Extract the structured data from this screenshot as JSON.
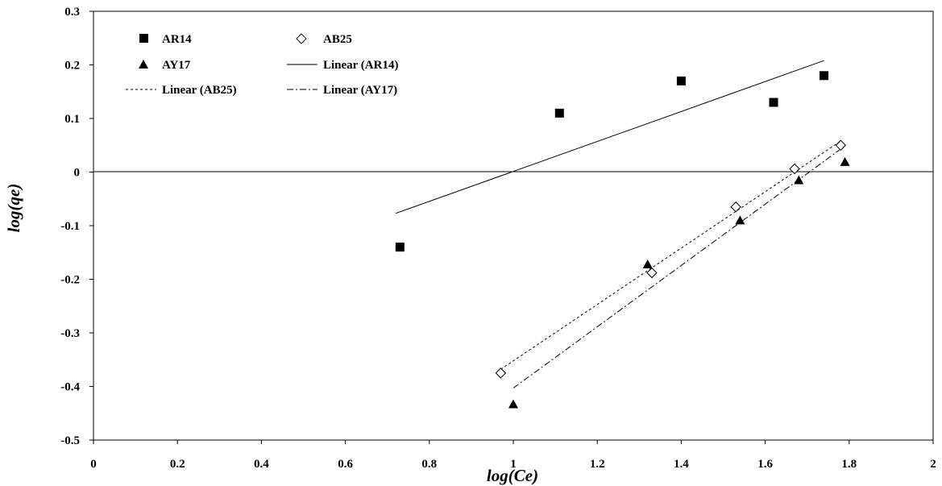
{
  "chart_data": {
    "type": "scatter",
    "title": "",
    "xlabel": "log(Ce)",
    "ylabel": "log(qe)",
    "xlim": [
      0,
      2
    ],
    "ylim": [
      -0.5,
      0.3
    ],
    "xticks": [
      0,
      0.2,
      0.4,
      0.6,
      0.8,
      1,
      1.2,
      1.4,
      1.6,
      1.8,
      2
    ],
    "yticks": [
      -0.5,
      -0.4,
      -0.3,
      -0.2,
      -0.1,
      0,
      0.1,
      0.2,
      0.3
    ],
    "grid": false,
    "legend_position": "top-left",
    "series": [
      {
        "name": "AR14",
        "marker": "square-filled",
        "x": [
          0.73,
          1.11,
          1.4,
          1.62,
          1.74
        ],
        "y": [
          -0.14,
          0.11,
          0.17,
          0.13,
          0.18
        ]
      },
      {
        "name": "AB25",
        "marker": "diamond-open",
        "x": [
          0.97,
          1.33,
          1.53,
          1.67,
          1.78
        ],
        "y": [
          -0.375,
          -0.188,
          -0.065,
          0.006,
          0.05
        ]
      },
      {
        "name": "AY17",
        "marker": "triangle-filled",
        "x": [
          1.0,
          1.32,
          1.54,
          1.68,
          1.79
        ],
        "y": [
          -0.433,
          -0.172,
          -0.09,
          -0.015,
          0.019
        ]
      }
    ],
    "trendlines": [
      {
        "name": "Linear (AR14)",
        "style": "solid",
        "x": [
          0.72,
          1.74
        ],
        "y": [
          -0.077,
          0.208
        ]
      },
      {
        "name": "Linear (AB25)",
        "style": "dashed",
        "x": [
          0.97,
          1.78
        ],
        "y": [
          -0.368,
          0.058
        ]
      },
      {
        "name": "Linear (AY17)",
        "style": "dash-dot",
        "x": [
          1.0,
          1.78
        ],
        "y": [
          -0.403,
          0.043
        ]
      }
    ]
  }
}
